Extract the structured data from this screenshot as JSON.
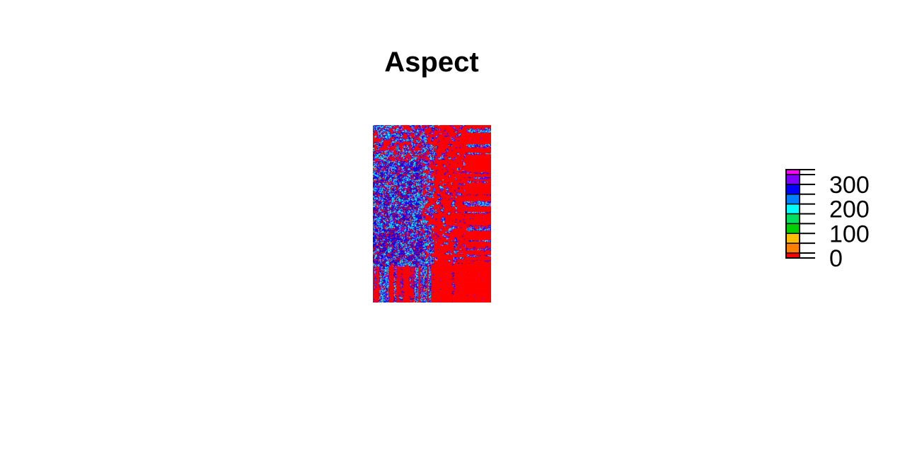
{
  "chart_data": {
    "type": "heatmap",
    "title": "Aspect",
    "xlabel": "",
    "ylabel": "",
    "grid": false,
    "legend": {
      "placement": "right",
      "range": [
        0,
        360
      ],
      "breaks": [
        0,
        20,
        60,
        100,
        140,
        180,
        220,
        260,
        300,
        340,
        360
      ],
      "colors": [
        "#FF0000",
        "#FF8000",
        "#FFBF00",
        "#00D000",
        "#00E060",
        "#00FFFF",
        "#0080FF",
        "#0000FF",
        "#8000FF",
        "#FF00FF"
      ],
      "tick_values": [
        0,
        100,
        200,
        300
      ],
      "tick_labels": [
        "0",
        "100",
        "200",
        "300"
      ]
    },
    "color_share": {
      "red": 0.55,
      "cyan": 0.2,
      "blue": 0.15,
      "violet": 0.1
    }
  }
}
